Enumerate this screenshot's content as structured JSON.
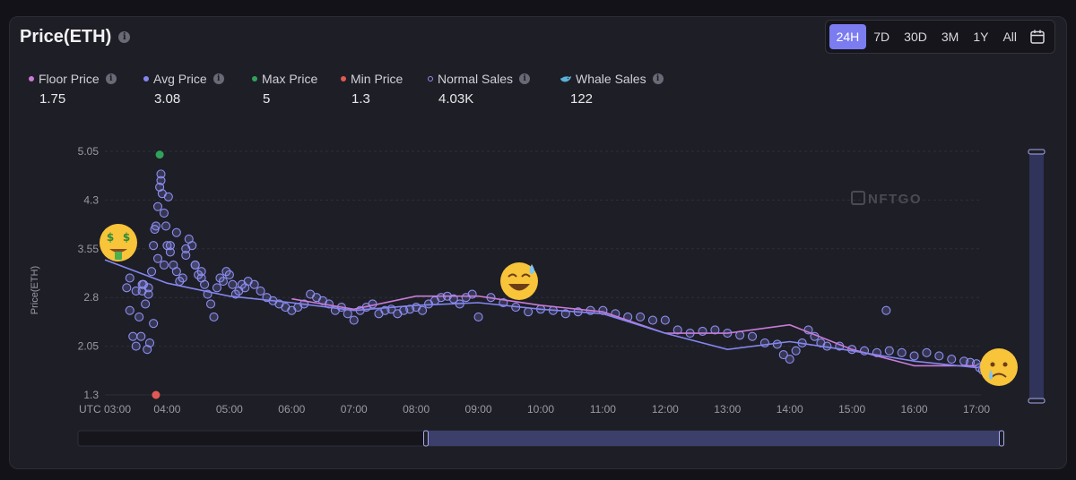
{
  "header": {
    "title": "Price(ETH)"
  },
  "time_ranges": [
    {
      "label": "24H",
      "active": true
    },
    {
      "label": "7D",
      "active": false
    },
    {
      "label": "30D",
      "active": false
    },
    {
      "label": "3M",
      "active": false
    },
    {
      "label": "1Y",
      "active": false
    },
    {
      "label": "All",
      "active": false
    }
  ],
  "legend": [
    {
      "label": "Floor Price",
      "value": "1.75",
      "color": "#c77cd6",
      "marker": "dot",
      "info": true
    },
    {
      "label": "Avg Price",
      "value": "3.08",
      "color": "#8486f0",
      "marker": "dot",
      "info": true
    },
    {
      "label": "Max Price",
      "value": "5",
      "color": "#2fa25a",
      "marker": "dot",
      "info": false
    },
    {
      "label": "Min Price",
      "value": "1.3",
      "color": "#e05a55",
      "marker": "dot",
      "info": false
    },
    {
      "label": "Normal Sales",
      "value": "4.03K",
      "color": "#8c8ef0",
      "marker": "ring",
      "info": true
    },
    {
      "label": "Whale Sales",
      "value": "122",
      "color": "#5ab0d8",
      "marker": "whale",
      "info": true
    }
  ],
  "watermark": "NFTGO",
  "chart_data": {
    "type": "scatter",
    "ylabel": "Price(ETH)",
    "y_ticks": [
      1.3,
      2.05,
      2.8,
      3.55,
      4.3,
      5.05
    ],
    "ylim": [
      1.3,
      5.05
    ],
    "x_ticks": [
      "UTC 03:00",
      "04:00",
      "05:00",
      "06:00",
      "07:00",
      "08:00",
      "09:00",
      "10:00",
      "11:00",
      "12:00",
      "13:00",
      "14:00",
      "15:00",
      "16:00",
      "17:00"
    ],
    "xlim_hours": [
      3,
      17
    ],
    "grid": "horizontal",
    "series": [
      {
        "name": "Floor Price",
        "type": "line",
        "color": "#c77cd6",
        "x": [
          6.0,
          7.0,
          8.0,
          9.0,
          10.0,
          11.0,
          12.0,
          13.0,
          14.0,
          15.0,
          16.0,
          17.0
        ],
        "y": [
          2.78,
          2.62,
          2.82,
          2.82,
          2.68,
          2.58,
          2.25,
          2.25,
          2.38,
          2.0,
          1.75,
          1.75
        ]
      },
      {
        "name": "Avg Price",
        "type": "line",
        "color": "#8486f0",
        "x": [
          3.0,
          4.0,
          5.0,
          6.0,
          7.0,
          8.0,
          9.0,
          10.0,
          11.0,
          12.0,
          13.0,
          14.0,
          15.0,
          16.0,
          17.0
        ],
        "y": [
          3.38,
          3.02,
          2.82,
          2.72,
          2.6,
          2.68,
          2.72,
          2.62,
          2.55,
          2.25,
          2.0,
          2.12,
          1.98,
          1.82,
          1.72
        ]
      },
      {
        "name": "Max Price",
        "type": "point",
        "color": "#2fa25a",
        "x": [
          3.88
        ],
        "y": [
          5.0
        ]
      },
      {
        "name": "Min Price",
        "type": "point",
        "color": "#e05a55",
        "x": [
          3.82
        ],
        "y": [
          1.3
        ]
      },
      {
        "name": "Normal Sales",
        "type": "scatter",
        "color": "#8c8ef0",
        "x": [
          3.3,
          3.35,
          3.4,
          3.45,
          3.5,
          3.55,
          3.6,
          3.62,
          3.65,
          3.7,
          3.72,
          3.75,
          3.78,
          3.8,
          3.82,
          3.85,
          3.88,
          3.9,
          3.92,
          3.95,
          3.98,
          4.0,
          4.05,
          4.1,
          4.15,
          4.2,
          4.25,
          4.3,
          4.35,
          4.4,
          4.45,
          4.5,
          4.55,
          4.6,
          4.65,
          4.7,
          4.75,
          4.8,
          4.85,
          4.9,
          4.95,
          5.0,
          5.05,
          5.1,
          5.15,
          5.2,
          5.25,
          5.3,
          5.4,
          5.5,
          5.6,
          5.7,
          5.8,
          5.9,
          6.0,
          6.1,
          6.2,
          6.3,
          6.4,
          6.5,
          6.6,
          6.7,
          6.8,
          6.9,
          7.0,
          7.1,
          7.2,
          7.3,
          7.4,
          7.5,
          7.6,
          7.7,
          7.8,
          7.9,
          8.0,
          8.1,
          8.2,
          8.3,
          8.4,
          8.5,
          8.6,
          8.7,
          8.8,
          8.9,
          9.0,
          9.2,
          9.4,
          9.6,
          9.8,
          10.0,
          10.2,
          10.4,
          10.6,
          10.8,
          11.0,
          11.2,
          11.4,
          11.6,
          11.8,
          12.0,
          12.2,
          12.4,
          12.6,
          12.8,
          13.0,
          13.2,
          13.4,
          13.6,
          13.8,
          13.9,
          14.0,
          14.1,
          14.2,
          14.3,
          14.4,
          14.5,
          14.6,
          14.8,
          15.0,
          15.2,
          15.4,
          15.55,
          15.6,
          15.8,
          16.0,
          16.2,
          16.4,
          16.6,
          16.8,
          16.9,
          17.0,
          17.05,
          17.1,
          3.4,
          3.5,
          3.6,
          3.7,
          3.85,
          3.95,
          4.05,
          4.15,
          4.3,
          4.45,
          4.55,
          3.58,
          3.68,
          3.78,
          3.9,
          4.02
        ],
        "y": [
          3.7,
          2.95,
          2.6,
          2.2,
          2.05,
          2.5,
          2.9,
          3.0,
          2.7,
          2.95,
          2.1,
          3.2,
          3.6,
          3.85,
          3.9,
          4.2,
          4.5,
          4.6,
          4.4,
          4.1,
          3.9,
          3.6,
          3.5,
          3.3,
          3.2,
          3.05,
          3.1,
          3.45,
          3.7,
          3.6,
          3.3,
          3.15,
          3.2,
          3.0,
          2.85,
          2.7,
          2.5,
          2.95,
          3.1,
          3.05,
          3.2,
          3.15,
          3.0,
          2.85,
          2.9,
          3.0,
          2.95,
          3.05,
          3.0,
          2.9,
          2.8,
          2.75,
          2.7,
          2.65,
          2.6,
          2.65,
          2.7,
          2.85,
          2.8,
          2.75,
          2.7,
          2.6,
          2.65,
          2.55,
          2.45,
          2.6,
          2.65,
          2.7,
          2.55,
          2.6,
          2.62,
          2.55,
          2.6,
          2.62,
          2.65,
          2.6,
          2.7,
          2.75,
          2.8,
          2.82,
          2.78,
          2.7,
          2.8,
          2.85,
          2.5,
          2.8,
          2.72,
          2.65,
          2.58,
          2.62,
          2.6,
          2.55,
          2.58,
          2.6,
          2.6,
          2.55,
          2.5,
          2.5,
          2.45,
          2.45,
          2.3,
          2.25,
          2.28,
          2.3,
          2.25,
          2.22,
          2.2,
          2.1,
          2.08,
          1.92,
          1.85,
          1.98,
          2.1,
          2.3,
          2.2,
          2.1,
          2.05,
          2.05,
          2.0,
          1.98,
          1.95,
          2.6,
          1.98,
          1.95,
          1.9,
          1.95,
          1.9,
          1.85,
          1.82,
          1.8,
          1.78,
          1.72,
          1.68,
          3.1,
          2.9,
          3.0,
          2.85,
          3.4,
          3.3,
          3.6,
          3.8,
          3.55,
          3.3,
          3.1,
          2.2,
          2.0,
          2.4,
          4.7,
          4.35
        ]
      }
    ]
  }
}
